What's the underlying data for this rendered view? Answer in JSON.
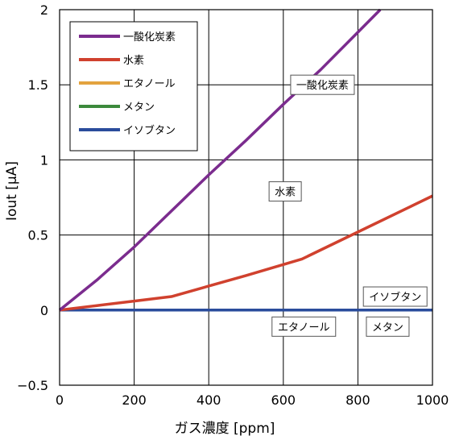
{
  "chart_data": {
    "type": "line",
    "xlabel": "ガス濃度 [ppm]",
    "ylabel": "Iout [μA]",
    "xlim": [
      0,
      1000
    ],
    "ylim": [
      -0.5,
      2
    ],
    "x_ticks": [
      0,
      200,
      400,
      600,
      800,
      1000
    ],
    "y_ticks": [
      -0.5,
      0,
      0.5,
      1,
      1.5,
      2
    ],
    "x_tick_labels": [
      "0",
      "200",
      "400",
      "600",
      "800",
      "1000"
    ],
    "y_tick_labels": [
      "−0.5",
      "0",
      "0.5",
      "1",
      "1.5",
      "2"
    ],
    "grid": true,
    "legend_position": "top-left",
    "series": [
      {
        "name": "一酸化炭素",
        "color": "#7B2C8E",
        "x": [
          0,
          30,
          100,
          200,
          300,
          400,
          500,
          600,
          700,
          800,
          860
        ],
        "y": [
          0,
          0.06,
          0.2,
          0.42,
          0.66,
          0.9,
          1.13,
          1.37,
          1.6,
          1.85,
          2.0
        ]
      },
      {
        "name": "水素",
        "color": "#D0412E",
        "x": [
          0,
          100,
          200,
          300,
          400,
          500,
          650,
          800,
          1000
        ],
        "y": [
          0,
          0.03,
          0.06,
          0.09,
          0.16,
          0.23,
          0.34,
          0.52,
          0.76
        ]
      },
      {
        "name": "エタノール",
        "color": "#E3A33F",
        "x": [
          0,
          1000
        ],
        "y": [
          0,
          0
        ]
      },
      {
        "name": "メタン",
        "color": "#3C8A3C",
        "x": [
          0,
          1000
        ],
        "y": [
          0,
          0
        ]
      },
      {
        "name": "イソブタン",
        "color": "#2A4C9C",
        "x": [
          0,
          1000
        ],
        "y": [
          0,
          0
        ]
      }
    ],
    "annotations": [
      {
        "text": "一酸化炭素",
        "x": 705,
        "y": 1.5
      },
      {
        "text": "水素",
        "x": 605,
        "y": 0.79
      },
      {
        "text": "イソブタン",
        "x": 900,
        "y": 0.09
      },
      {
        "text": "エタノール",
        "x": 655,
        "y": -0.11
      },
      {
        "text": "メタン",
        "x": 880,
        "y": -0.11
      }
    ]
  }
}
